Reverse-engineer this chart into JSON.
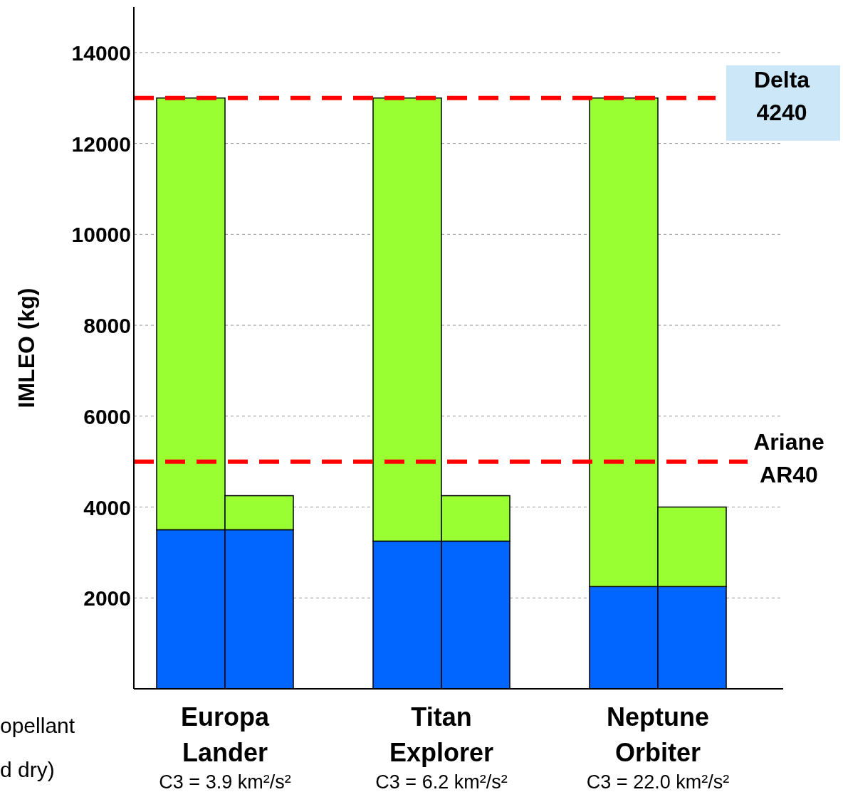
{
  "chart_data": {
    "type": "bar",
    "stacked": true,
    "ylabel": "IMLEO (kg)",
    "categories": [
      null,
      null,
      null,
      null,
      null,
      null
    ],
    "series": [
      {
        "color": "#0066ff",
        "values": [
          3500,
          3500,
          3250,
          3250,
          2250,
          2250
        ]
      },
      {
        "color": "#99ff33",
        "values": [
          9500,
          750,
          9750,
          1000,
          10750,
          1750
        ]
      }
    ],
    "ylim": [
      0,
      15000
    ],
    "yticks": [
      2000,
      4000,
      6000,
      8000,
      10000,
      12000,
      14000
    ],
    "grid": "y",
    "ref_lines": [
      {
        "axis": "y",
        "value": 13000,
        "label": "Delta\n4240",
        "color": "#ff0000",
        "line_style": "dashed"
      },
      {
        "axis": "y",
        "value": 5000,
        "label": "Ariane\nAR40",
        "color": "#ff0000",
        "line_style": "dashed"
      }
    ],
    "annotations": [
      "Europa\nLander",
      "Titan\nExplorer",
      "Neptune\nOrbiter",
      "C3 = 3.9 km²/s²",
      "C3 = 6.2 km²/s²",
      "C3 = 22.0 km²/s²",
      "opellant",
      "d dry)"
    ]
  }
}
